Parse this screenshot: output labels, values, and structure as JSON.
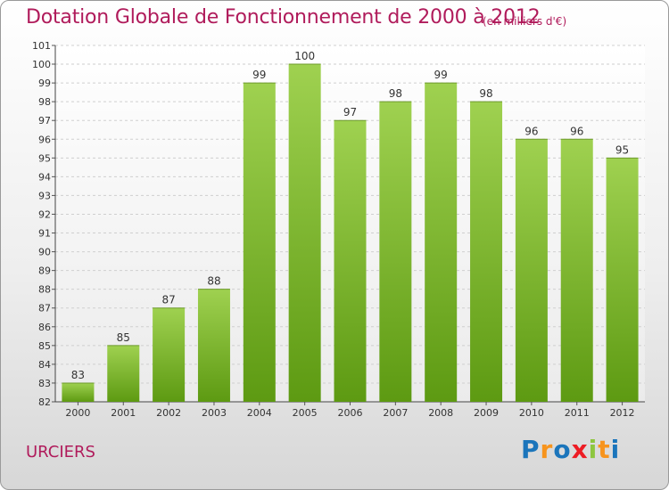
{
  "chart_data": {
    "type": "bar",
    "title": "Dotation Globale de Fonctionnement de 2000 à 2012",
    "subtitle": "(en milliers d'€)",
    "categories": [
      "2000",
      "2001",
      "2002",
      "2003",
      "2004",
      "2005",
      "2006",
      "2007",
      "2008",
      "2009",
      "2010",
      "2011",
      "2012"
    ],
    "values": [
      83,
      85,
      87,
      88,
      99,
      100,
      97,
      98,
      99,
      98,
      96,
      96,
      95
    ],
    "ylim": [
      82,
      101
    ],
    "yticks": [
      "82",
      "83",
      "84",
      "85",
      "86",
      "87",
      "88",
      "89",
      "90",
      "91",
      "92",
      "93",
      "94",
      "95",
      "96",
      "97",
      "98",
      "99",
      "100",
      "101"
    ],
    "xlabel": "",
    "ylabel": "",
    "grid": true,
    "bar_color": "#8cc63f"
  },
  "footer": {
    "commune": "URCIERS"
  },
  "logo": {
    "letters": [
      "P",
      "r",
      "o",
      "x",
      "i",
      "t",
      "i"
    ],
    "colors": [
      "#1b75bb",
      "#f7941d",
      "#1b75bb",
      "#ed1c24",
      "#8dc63f",
      "#f7941d",
      "#1b75bb"
    ]
  }
}
